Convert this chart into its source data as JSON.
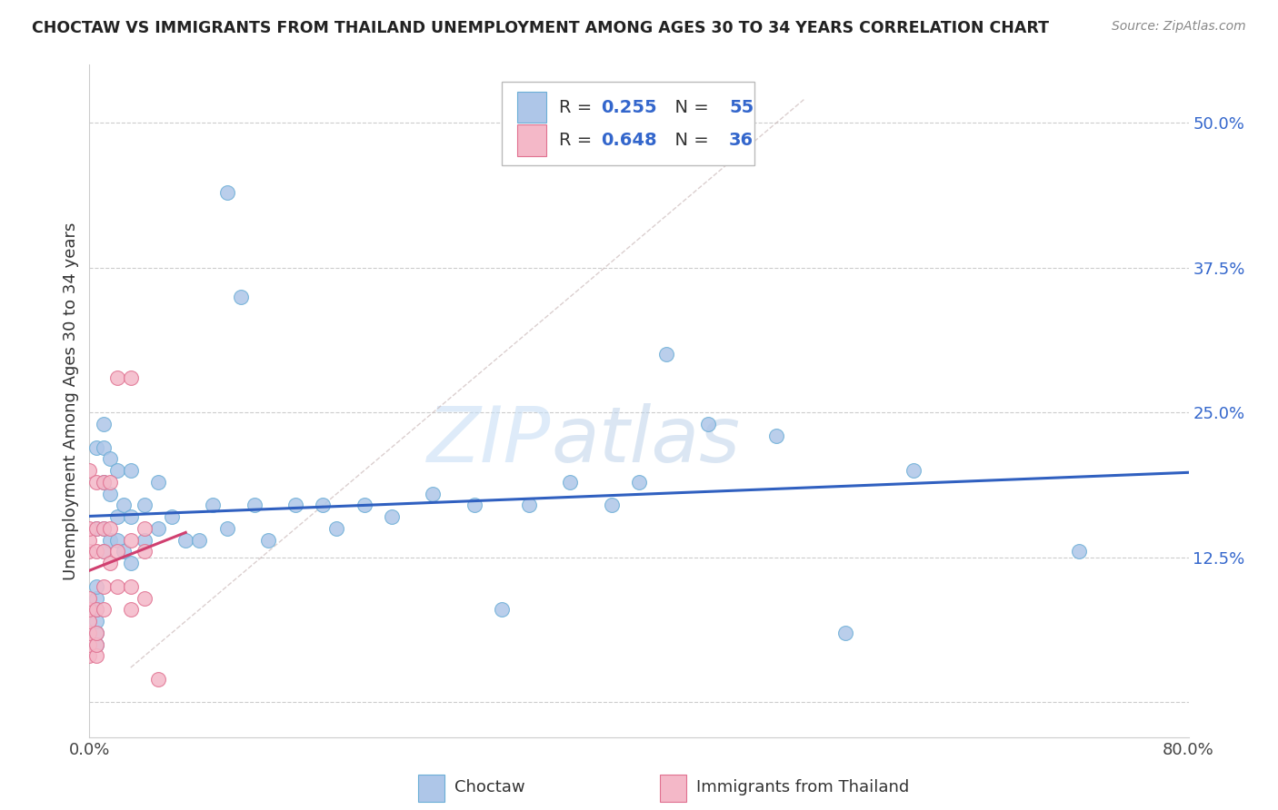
{
  "title": "CHOCTAW VS IMMIGRANTS FROM THAILAND UNEMPLOYMENT AMONG AGES 30 TO 34 YEARS CORRELATION CHART",
  "source": "Source: ZipAtlas.com",
  "ylabel": "Unemployment Among Ages 30 to 34 years",
  "xlim": [
    0.0,
    0.8
  ],
  "ylim": [
    -0.03,
    0.55
  ],
  "yticks": [
    0.0,
    0.125,
    0.25,
    0.375,
    0.5
  ],
  "ytick_labels": [
    "",
    "12.5%",
    "25.0%",
    "37.5%",
    "50.0%"
  ],
  "background_color": "#ffffff",
  "grid_color": "#cccccc",
  "choctaw_color": "#aec6e8",
  "choctaw_edge": "#6baed6",
  "thailand_color": "#f4b8c8",
  "thailand_edge": "#e07090",
  "choctaw_R": 0.255,
  "choctaw_N": 55,
  "thailand_R": 0.648,
  "thailand_N": 36,
  "choctaw_line_color": "#3060c0",
  "thailand_line_color": "#d04070",
  "diagonal_color": "#ccbbbb",
  "choctaw_x": [
    0.005,
    0.005,
    0.005,
    0.005,
    0.005,
    0.005,
    0.005,
    0.005,
    0.01,
    0.01,
    0.01,
    0.01,
    0.01,
    0.015,
    0.015,
    0.015,
    0.02,
    0.02,
    0.02,
    0.025,
    0.025,
    0.03,
    0.03,
    0.03,
    0.04,
    0.04,
    0.05,
    0.05,
    0.06,
    0.07,
    0.08,
    0.09,
    0.1,
    0.11,
    0.12,
    0.13,
    0.15,
    0.17,
    0.18,
    0.2,
    0.22,
    0.25,
    0.28,
    0.3,
    0.32,
    0.35,
    0.38,
    0.4,
    0.42,
    0.45,
    0.5,
    0.55,
    0.6,
    0.72,
    0.1
  ],
  "choctaw_y": [
    0.05,
    0.06,
    0.07,
    0.08,
    0.09,
    0.1,
    0.15,
    0.22,
    0.13,
    0.15,
    0.19,
    0.22,
    0.24,
    0.14,
    0.18,
    0.21,
    0.14,
    0.16,
    0.2,
    0.13,
    0.17,
    0.12,
    0.16,
    0.2,
    0.14,
    0.17,
    0.15,
    0.19,
    0.16,
    0.14,
    0.14,
    0.17,
    0.15,
    0.35,
    0.17,
    0.14,
    0.17,
    0.17,
    0.15,
    0.17,
    0.16,
    0.18,
    0.17,
    0.08,
    0.17,
    0.19,
    0.17,
    0.19,
    0.3,
    0.24,
    0.23,
    0.06,
    0.2,
    0.13,
    0.44
  ],
  "thailand_x": [
    0.0,
    0.0,
    0.0,
    0.0,
    0.0,
    0.0,
    0.0,
    0.0,
    0.0,
    0.0,
    0.005,
    0.005,
    0.005,
    0.005,
    0.005,
    0.005,
    0.005,
    0.01,
    0.01,
    0.01,
    0.01,
    0.01,
    0.015,
    0.015,
    0.015,
    0.02,
    0.02,
    0.02,
    0.03,
    0.03,
    0.03,
    0.03,
    0.04,
    0.04,
    0.04,
    0.05
  ],
  "thailand_y": [
    0.04,
    0.05,
    0.06,
    0.07,
    0.08,
    0.09,
    0.13,
    0.14,
    0.15,
    0.2,
    0.04,
    0.05,
    0.06,
    0.08,
    0.13,
    0.15,
    0.19,
    0.08,
    0.1,
    0.13,
    0.15,
    0.19,
    0.12,
    0.15,
    0.19,
    0.1,
    0.13,
    0.28,
    0.08,
    0.1,
    0.14,
    0.28,
    0.09,
    0.13,
    0.15,
    0.02
  ]
}
